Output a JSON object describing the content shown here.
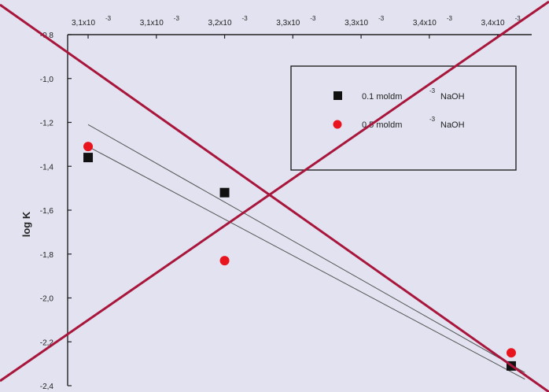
{
  "chart_data": {
    "type": "scatter",
    "title": "",
    "xlabel": "",
    "ylabel": "log K",
    "xlim": [
      0.003085,
      0.003425
    ],
    "ylim": [
      -2.4,
      -0.8
    ],
    "x_ticks": [
      {
        "value": 0.0031,
        "label": "3,1x10",
        "exp": "-3"
      },
      {
        "value": 0.00315,
        "label": "3,1x10",
        "exp": "-3"
      },
      {
        "value": 0.0032,
        "label": "3,2x10",
        "exp": "-3"
      },
      {
        "value": 0.00325,
        "label": "3,3x10",
        "exp": "-3"
      },
      {
        "value": 0.0033,
        "label": "3,3x10",
        "exp": "-3"
      },
      {
        "value": 0.00335,
        "label": "3,4x10",
        "exp": "-3"
      },
      {
        "value": 0.0034,
        "label": "3,4x10",
        "exp": "-3"
      }
    ],
    "y_ticks": [
      {
        "value": -0.8,
        "label": "-0,8"
      },
      {
        "value": -1.0,
        "label": "-1,0"
      },
      {
        "value": -1.2,
        "label": "-1,2"
      },
      {
        "value": -1.4,
        "label": "-1,4"
      },
      {
        "value": -1.6,
        "label": "-1,6"
      },
      {
        "value": -1.8,
        "label": "-1,8"
      },
      {
        "value": -2.0,
        "label": "-2,0"
      },
      {
        "value": -2.2,
        "label": "-2,2"
      },
      {
        "value": -2.4,
        "label": "-2,4"
      }
    ],
    "series": [
      {
        "name": "0.1 moldm",
        "name_sup": "-3",
        "name_suffix": "NaOH",
        "marker": "square",
        "color": "#111111",
        "points": [
          [
            0.0031,
            -1.36
          ],
          [
            0.0032,
            -1.52
          ],
          [
            0.00341,
            -2.31
          ]
        ],
        "fit": [
          [
            0.0031,
            -1.31
          ],
          [
            0.00342,
            -2.37
          ]
        ]
      },
      {
        "name": "0.5 moldm",
        "name_sup": "-3",
        "name_suffix": "NaOH",
        "marker": "circle",
        "color": "#e8141e",
        "points": [
          [
            0.0031,
            -1.31
          ],
          [
            0.0032,
            -1.83
          ],
          [
            0.00341,
            -2.25
          ]
        ],
        "fit": [
          [
            0.0031,
            -1.21
          ],
          [
            0.00342,
            -2.34
          ]
        ]
      }
    ],
    "grid": false,
    "legend_position": "top-right",
    "overlay_colors": {
      "cross": "#a8163b",
      "frame": "#222222"
    }
  }
}
